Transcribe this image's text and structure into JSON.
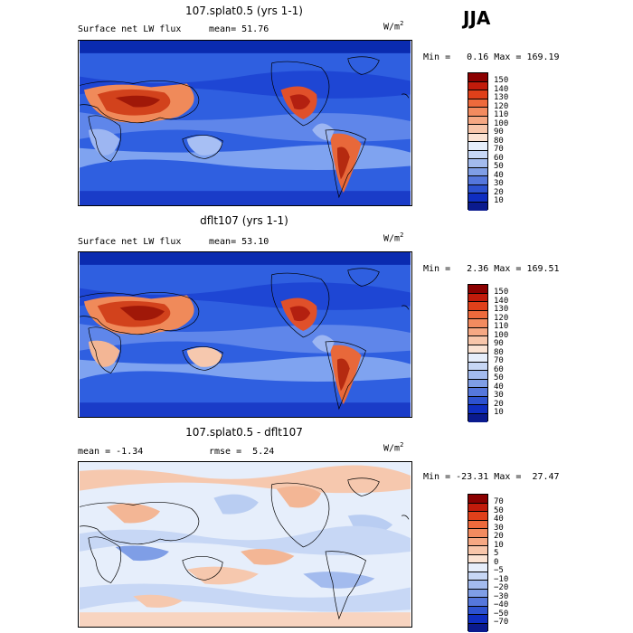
{
  "season": "JJA",
  "colors": {
    "ocean_deep": "#0a2bb0",
    "ocean_mid": "#2f5fe0",
    "ocean_light": "#7fa3f0",
    "land_hot": "#c83a1c",
    "diff_pos": "#f3c2a8",
    "diff_neg": "#b9cdf2"
  },
  "panels": [
    {
      "title": "107.splat0.5 (yrs 1-1)",
      "variable": "Surface net LW flux",
      "stat_label": "mean=",
      "stat_value": "51.76",
      "units": "W/m",
      "units_exp": "2",
      "min_label": "Min =",
      "min_value": "0.16",
      "max_label": "Max =",
      "max_value": "169.19",
      "colorbar": {
        "levels": [
          "150",
          "140",
          "130",
          "120",
          "110",
          "100",
          "90",
          "80",
          "70",
          "60",
          "50",
          "40",
          "30",
          "20",
          "10"
        ],
        "colors": [
          "#8b0000",
          "#c21b0b",
          "#e0401a",
          "#ee6a3c",
          "#f38b5f",
          "#f6a883",
          "#f8c6aa",
          "#fbe3d3",
          "#e6eefb",
          "#c7d7f5",
          "#a3bbee",
          "#7f9ee6",
          "#5577dc",
          "#2d52d0",
          "#0f2ec1",
          "#0a1a8e"
        ]
      }
    },
    {
      "title": "dflt107 (yrs 1-1)",
      "variable": "Surface net LW flux",
      "stat_label": "mean=",
      "stat_value": "53.10",
      "units": "W/m",
      "units_exp": "2",
      "min_label": "Min =",
      "min_value": "2.36",
      "max_label": "Max =",
      "max_value": "169.51",
      "colorbar": {
        "levels": [
          "150",
          "140",
          "130",
          "120",
          "110",
          "100",
          "90",
          "80",
          "70",
          "60",
          "50",
          "40",
          "30",
          "20",
          "10"
        ],
        "colors": [
          "#8b0000",
          "#c21b0b",
          "#e0401a",
          "#ee6a3c",
          "#f38b5f",
          "#f6a883",
          "#f8c6aa",
          "#fbe3d3",
          "#e6eefb",
          "#c7d7f5",
          "#a3bbee",
          "#7f9ee6",
          "#5577dc",
          "#2d52d0",
          "#0f2ec1",
          "#0a1a8e"
        ]
      }
    },
    {
      "title": "107.splat0.5 - dflt107",
      "stat_label": "mean =",
      "stat_value": "-1.34",
      "rmse_label": "rmse =",
      "rmse_value": "5.24",
      "units": "W/m",
      "units_exp": "2",
      "min_label": "Min =",
      "min_value": "-23.31",
      "max_label": "Max =",
      "max_value": "27.47",
      "colorbar": {
        "levels": [
          "70",
          "50",
          "40",
          "30",
          "20",
          "10",
          "5",
          "0",
          "−5",
          "−10",
          "−20",
          "−30",
          "−40",
          "−50",
          "−70"
        ],
        "colors": [
          "#8b0000",
          "#c21b0b",
          "#e0401a",
          "#ee6a3c",
          "#f38b5f",
          "#f6a883",
          "#f8c6aa",
          "#fbe3d3",
          "#e6eefb",
          "#c7d7f5",
          "#a3bbee",
          "#7f9ee6",
          "#5577dc",
          "#2d52d0",
          "#0f2ec1",
          "#0a1a8e"
        ]
      }
    }
  ],
  "chart_data": [
    {
      "type": "heatmap",
      "title": "107.splat0.5 (yrs 1-1)",
      "variable": "Surface net LW flux",
      "units": "W/m2",
      "mean": 51.76,
      "min": 0.16,
      "max": 169.19,
      "contour_levels": [
        10,
        20,
        30,
        40,
        50,
        60,
        70,
        80,
        90,
        100,
        110,
        120,
        130,
        140,
        150
      ],
      "projection": "global lat-lon"
    },
    {
      "type": "heatmap",
      "title": "dflt107 (yrs 1-1)",
      "variable": "Surface net LW flux",
      "units": "W/m2",
      "mean": 53.1,
      "min": 2.36,
      "max": 169.51,
      "contour_levels": [
        10,
        20,
        30,
        40,
        50,
        60,
        70,
        80,
        90,
        100,
        110,
        120,
        130,
        140,
        150
      ],
      "projection": "global lat-lon"
    },
    {
      "type": "heatmap",
      "title": "107.splat0.5 - dflt107",
      "units": "W/m2",
      "mean": -1.34,
      "rmse": 5.24,
      "min": -23.31,
      "max": 27.47,
      "contour_levels": [
        -70,
        -50,
        -40,
        -30,
        -20,
        -10,
        -5,
        0,
        5,
        10,
        20,
        30,
        40,
        50,
        70
      ],
      "projection": "global lat-lon"
    }
  ]
}
